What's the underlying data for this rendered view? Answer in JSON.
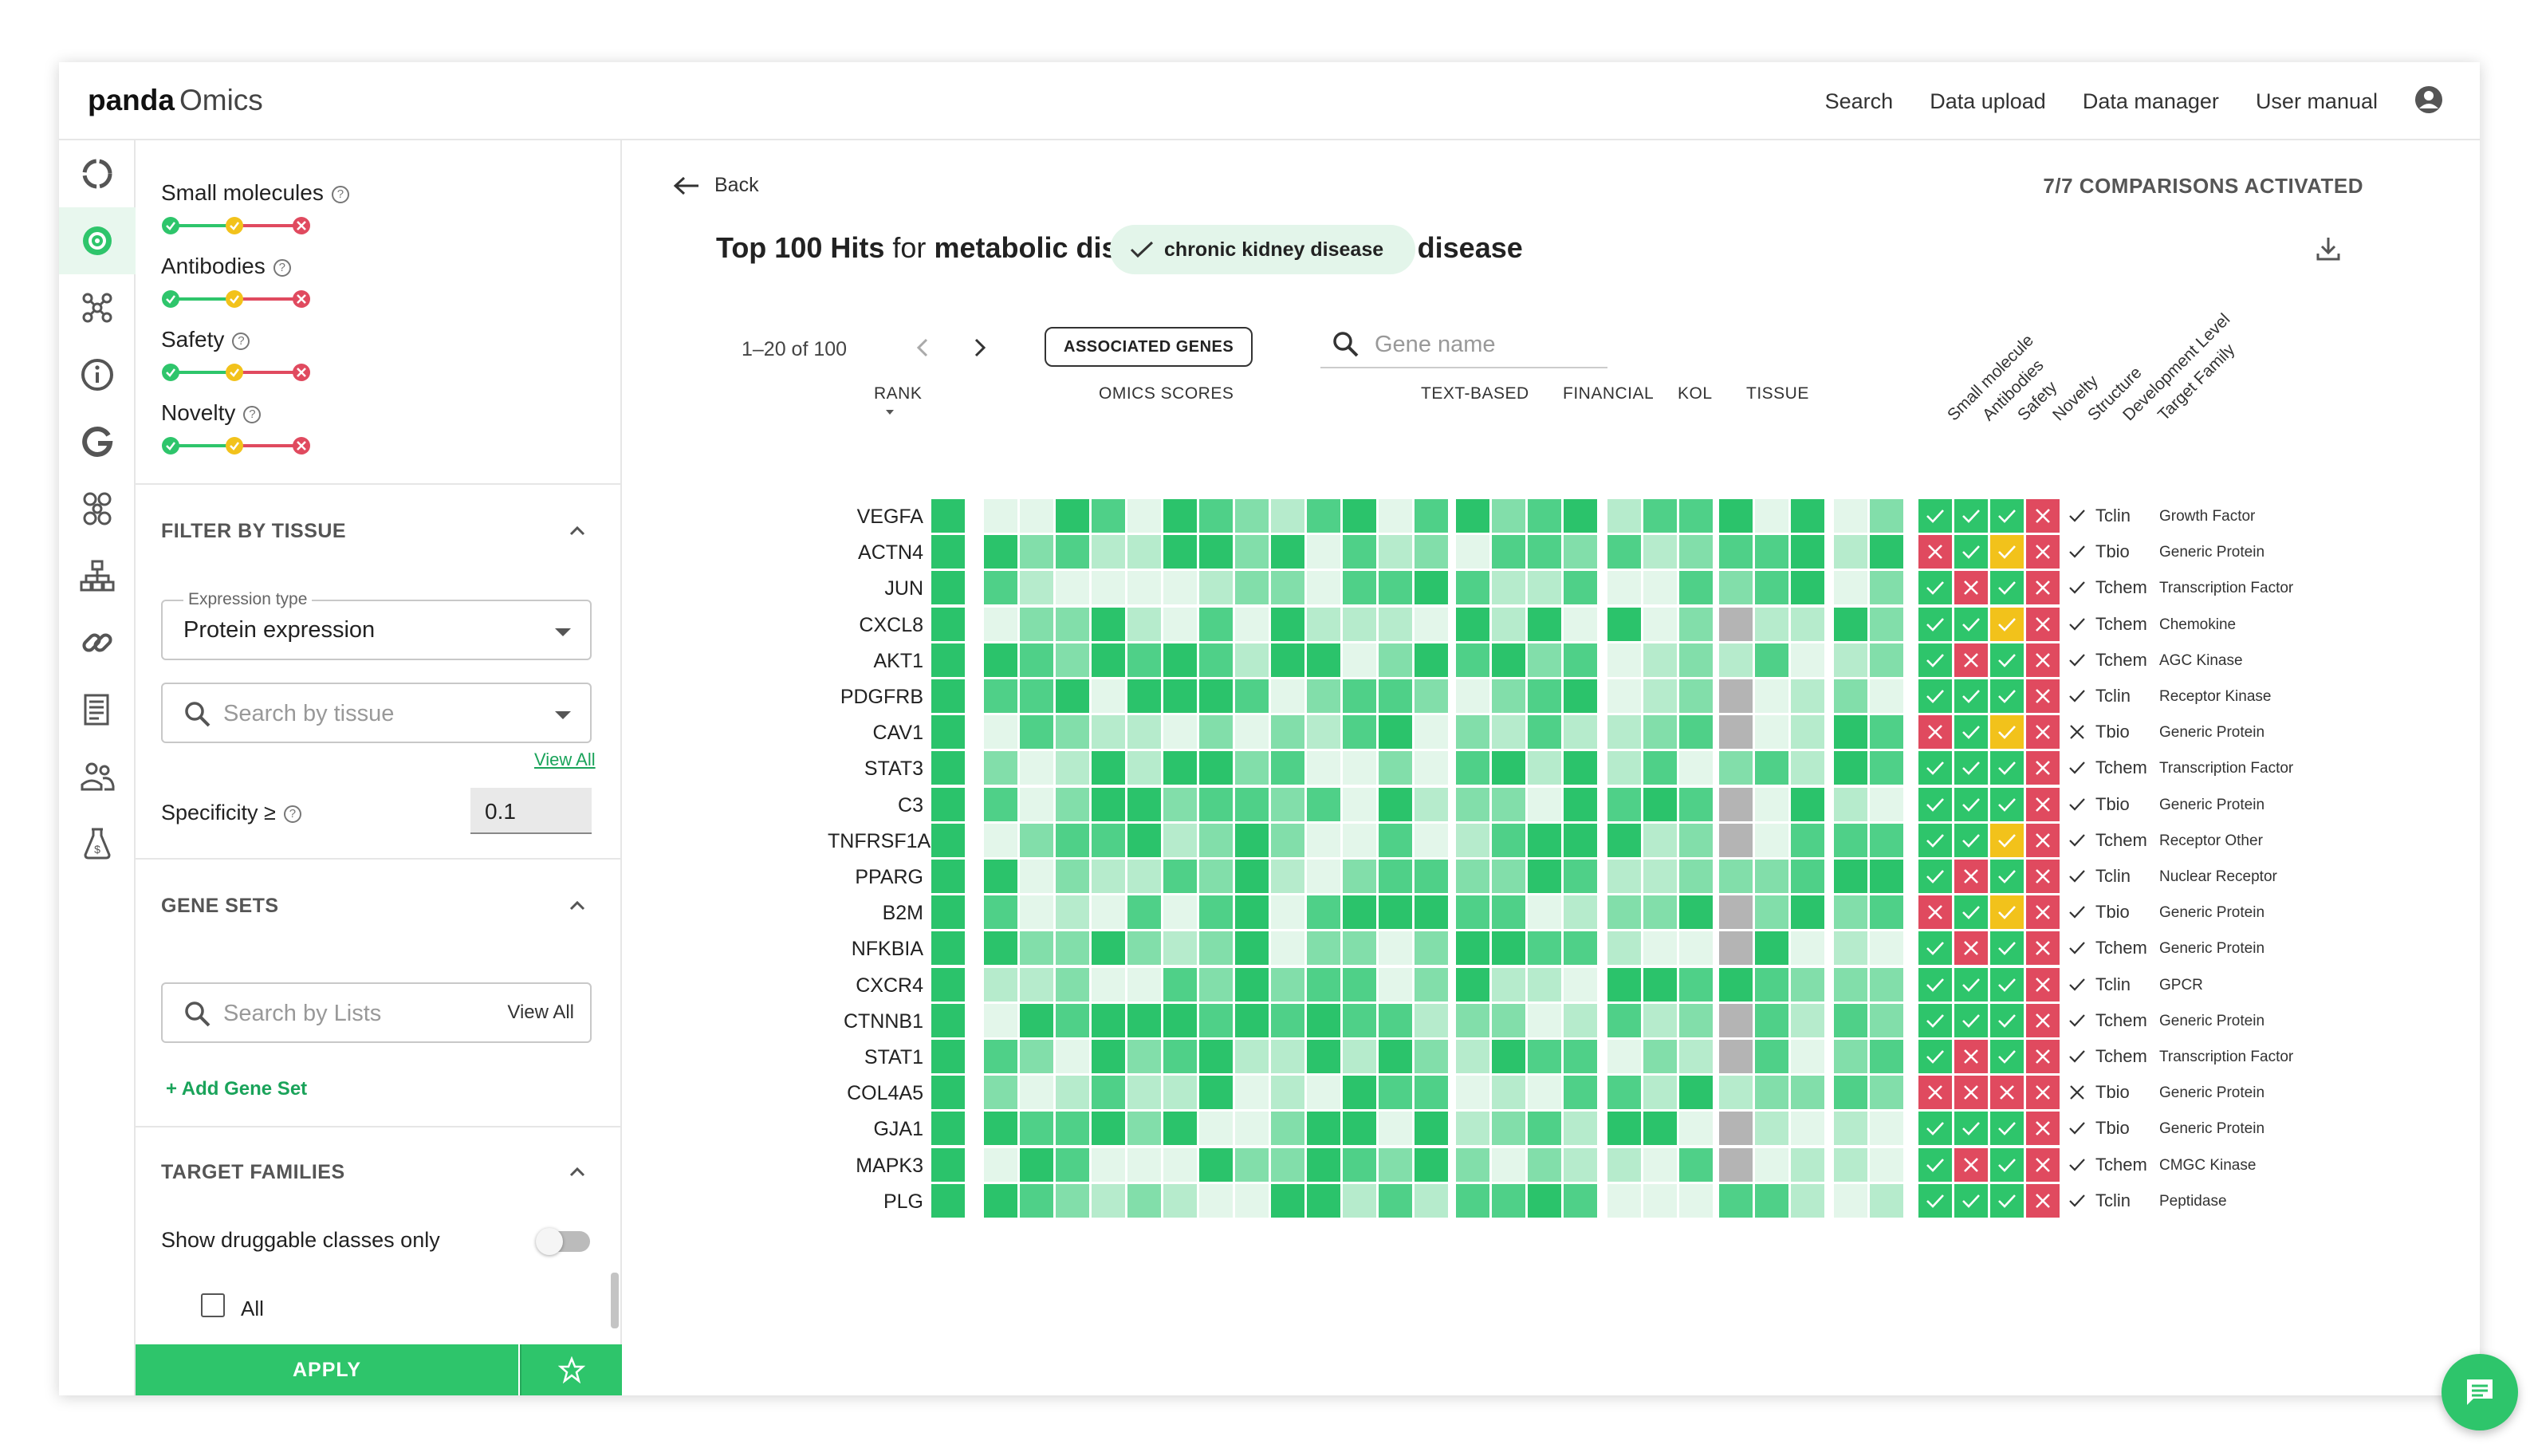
{
  "app": {
    "logo_bold": "panda",
    "logo_light": "Omics"
  },
  "nav": {
    "items": [
      "Search",
      "Data upload",
      "Data manager",
      "User manual"
    ]
  },
  "rail_icons": [
    "ring-icon",
    "target-icon",
    "network-icon",
    "info-icon",
    "g-icon",
    "nodes-icon",
    "hierarchy-icon",
    "link-icon",
    "document-icon",
    "people-icon",
    "money-flask-icon"
  ],
  "filters": {
    "criteria": [
      {
        "label": "Small molecules"
      },
      {
        "label": "Antibodies"
      },
      {
        "label": "Safety"
      },
      {
        "label": "Novelty"
      }
    ],
    "tissue": {
      "title": "FILTER BY TISSUE",
      "expression_label": "Expression type",
      "expression_value": "Protein expression",
      "search_placeholder": "Search by tissue",
      "view_all": "View All",
      "specificity_label": "Specificity ≥",
      "specificity_value": "0.1"
    },
    "gene_sets": {
      "title": "GENE SETS",
      "search_placeholder": "Search by Lists",
      "view_all": "View All",
      "add_label": "+ Add Gene Set"
    },
    "target_families": {
      "title": "TARGET FAMILIES",
      "druggable_label": "Show druggable classes only",
      "all_label": "All"
    },
    "apply_label": "APPLY"
  },
  "main": {
    "back_label": "Back",
    "comparisons": "7/7 COMPARISONS ACTIVATED",
    "title_bold": "Top 100 Hits",
    "title_mid": "for",
    "title_disease": "metabolic disease - chronic kidney disease",
    "chip_label": "chronic kidney disease",
    "pager_text": "1–20 of 100",
    "assoc_button": "ASSOCIATED GENES",
    "gene_search_placeholder": "Gene name",
    "col_headers": {
      "rank": "RANK",
      "omics": "OMICS SCORES",
      "text": "TEXT-BASED",
      "financial": "FINANCIAL",
      "kol": "KOL",
      "tissue": "TISSUE"
    },
    "rotated_headers": [
      "Small molecule",
      "Antibodies",
      "Safety",
      "Novelty",
      "Structure",
      "Development Level",
      "Target Family"
    ]
  },
  "colors": {
    "accent": "#2ec56b",
    "red": "#e04a5f",
    "yellow": "#f2c21b",
    "grey": "#b4b4b4"
  },
  "genes": [
    {
      "name": "VEGFA",
      "flags": [
        "g",
        "g",
        "g",
        "r"
      ],
      "tract": "Tclin",
      "tract_ok": true,
      "family": "Growth Factor"
    },
    {
      "name": "ACTN4",
      "flags": [
        "r",
        "g",
        "y",
        "r"
      ],
      "tract": "Tbio",
      "tract_ok": true,
      "family": "Generic Protein"
    },
    {
      "name": "JUN",
      "flags": [
        "g",
        "r",
        "g",
        "r"
      ],
      "tract": "Tchem",
      "tract_ok": true,
      "family": "Transcription Factor"
    },
    {
      "name": "CXCL8",
      "flags": [
        "g",
        "g",
        "y",
        "r"
      ],
      "tract": "Tchem",
      "tract_ok": true,
      "family": "Chemokine"
    },
    {
      "name": "AKT1",
      "flags": [
        "g",
        "r",
        "g",
        "r"
      ],
      "tract": "Tchem",
      "tract_ok": true,
      "family": "AGC Kinase"
    },
    {
      "name": "PDGFRB",
      "flags": [
        "g",
        "g",
        "g",
        "r"
      ],
      "tract": "Tclin",
      "tract_ok": true,
      "family": "Receptor Kinase"
    },
    {
      "name": "CAV1",
      "flags": [
        "r",
        "g",
        "y",
        "r"
      ],
      "tract": "Tbio",
      "tract_ok": false,
      "family": "Generic Protein"
    },
    {
      "name": "STAT3",
      "flags": [
        "g",
        "g",
        "g",
        "r"
      ],
      "tract": "Tchem",
      "tract_ok": true,
      "family": "Transcription Factor"
    },
    {
      "name": "C3",
      "flags": [
        "g",
        "g",
        "g",
        "r"
      ],
      "tract": "Tbio",
      "tract_ok": true,
      "family": "Generic Protein"
    },
    {
      "name": "TNFRSF1A",
      "flags": [
        "g",
        "g",
        "y",
        "r"
      ],
      "tract": "Tchem",
      "tract_ok": true,
      "family": "Receptor Other"
    },
    {
      "name": "PPARG",
      "flags": [
        "g",
        "r",
        "g",
        "r"
      ],
      "tract": "Tclin",
      "tract_ok": true,
      "family": "Nuclear Receptor"
    },
    {
      "name": "B2M",
      "flags": [
        "r",
        "g",
        "y",
        "r"
      ],
      "tract": "Tbio",
      "tract_ok": true,
      "family": "Generic Protein"
    },
    {
      "name": "NFKBIA",
      "flags": [
        "g",
        "r",
        "g",
        "r"
      ],
      "tract": "Tchem",
      "tract_ok": true,
      "family": "Generic Protein"
    },
    {
      "name": "CXCR4",
      "flags": [
        "g",
        "g",
        "g",
        "r"
      ],
      "tract": "Tclin",
      "tract_ok": true,
      "family": "GPCR"
    },
    {
      "name": "CTNNB1",
      "flags": [
        "g",
        "g",
        "g",
        "r"
      ],
      "tract": "Tchem",
      "tract_ok": true,
      "family": "Generic Protein"
    },
    {
      "name": "STAT1",
      "flags": [
        "g",
        "r",
        "g",
        "r"
      ],
      "tract": "Tchem",
      "tract_ok": true,
      "family": "Transcription Factor"
    },
    {
      "name": "COL4A5",
      "flags": [
        "r",
        "r",
        "r",
        "r"
      ],
      "tract": "Tbio",
      "tract_ok": false,
      "family": "Generic Protein"
    },
    {
      "name": "GJA1",
      "flags": [
        "g",
        "g",
        "g",
        "r"
      ],
      "tract": "Tbio",
      "tract_ok": true,
      "family": "Generic Protein"
    },
    {
      "name": "MAPK3",
      "flags": [
        "g",
        "r",
        "g",
        "r"
      ],
      "tract": "Tchem",
      "tract_ok": true,
      "family": "CMGC Kinase"
    },
    {
      "name": "PLG",
      "flags": [
        "g",
        "g",
        "g",
        "r"
      ],
      "tract": "Tclin",
      "tract_ok": true,
      "family": "Peptidase"
    }
  ]
}
